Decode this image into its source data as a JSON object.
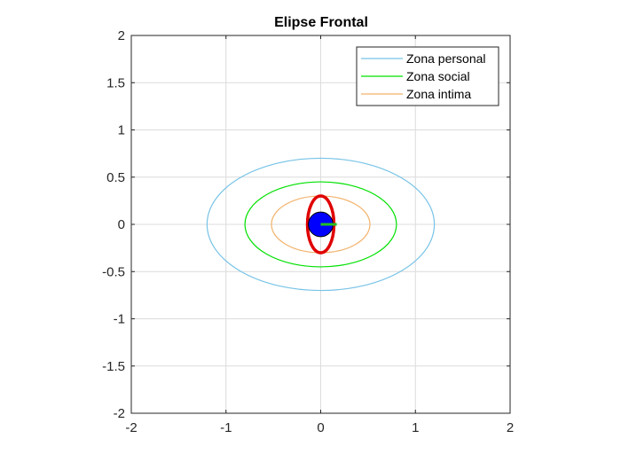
{
  "chart_data": {
    "type": "line",
    "title": "Elipse Frontal",
    "xlabel": "",
    "ylabel": "",
    "xlim": [
      -2,
      2
    ],
    "ylim": [
      -2,
      2
    ],
    "grid": true,
    "legend_position": "top-right",
    "x_ticks": [
      -2,
      -1,
      0,
      1,
      2
    ],
    "x_tick_labels": [
      "-2",
      "-1",
      "0",
      "1",
      "2"
    ],
    "y_ticks": [
      -2,
      -1.5,
      -1,
      -0.5,
      0,
      0.5,
      1,
      1.5,
      2
    ],
    "y_tick_labels": [
      "-2",
      "-1.5",
      "-1",
      "-0.5",
      "0",
      "0.5",
      "1",
      "1.5",
      "2"
    ],
    "series": [
      {
        "name": "Zona personal",
        "shape": "ellipse",
        "center": [
          0,
          0
        ],
        "semi_axes": [
          1.2,
          0.7
        ],
        "color": "#77c3e6",
        "in_legend": true
      },
      {
        "name": "Zona social",
        "shape": "ellipse",
        "center": [
          0,
          0
        ],
        "semi_axes": [
          0.8,
          0.45
        ],
        "color": "#00e000",
        "in_legend": true
      },
      {
        "name": "Zona intima",
        "shape": "ellipse",
        "center": [
          0,
          0
        ],
        "semi_axes": [
          0.52,
          0.3
        ],
        "color": "#f2b26b",
        "in_legend": true
      },
      {
        "shape": "ellipse",
        "center": [
          0,
          0
        ],
        "semi_axes": [
          0.14,
          0.3
        ],
        "color": "#e00000",
        "in_legend": false
      },
      {
        "shape": "filled-circle",
        "center": [
          0,
          0
        ],
        "radius": 0.13,
        "color": "#0000ff",
        "in_legend": false
      },
      {
        "shape": "segment",
        "from": [
          0,
          0
        ],
        "to": [
          0.17,
          0
        ],
        "color": "#22c022",
        "in_legend": false
      }
    ]
  }
}
